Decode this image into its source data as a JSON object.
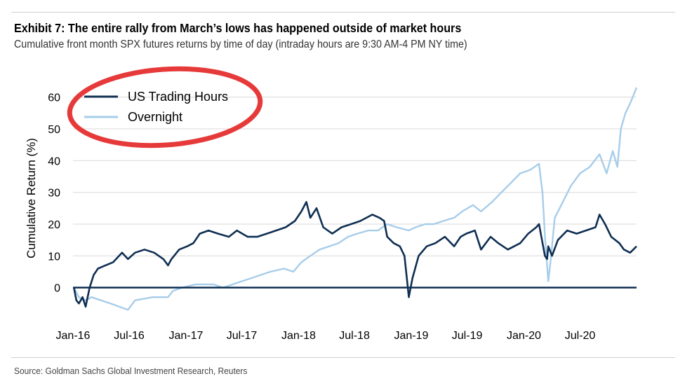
{
  "header": {
    "title": "Exhibit 7: The entire rally from March’s lows has happened outside of market hours",
    "subtitle": "Cumulative front month SPX futures returns by time of day (intraday hours are 9:30 AM-4 PM NY time)"
  },
  "footer": {
    "source": "Source: Goldman Sachs Global Investment Research, Reuters"
  },
  "colors": {
    "trading": "#0f2f52",
    "overnight": "#a7cdea",
    "zero_line": "#0f2f52",
    "grid": "#d9d9d9",
    "annotation": "#e63a3a"
  },
  "chart_data": {
    "type": "line",
    "title": "Exhibit 7: The entire rally from March’s lows has happened outside of market hours",
    "subtitle": "Cumulative front month SPX futures returns by time of day (intraday hours are 9:30 AM-4 PM NY time)",
    "xlabel": "",
    "ylabel": "Cumulative Return (%)",
    "ylim": [
      -10,
      65
    ],
    "yticks": [
      0,
      10,
      20,
      30,
      40,
      50,
      60
    ],
    "xlim": [
      "2016-01-01",
      "2020-12-31"
    ],
    "xticks": [
      {
        "date": "2016-01-01",
        "label": "Jan-16"
      },
      {
        "date": "2016-07-01",
        "label": "Jul-16"
      },
      {
        "date": "2017-01-01",
        "label": "Jan-17"
      },
      {
        "date": "2017-07-01",
        "label": "Jul-17"
      },
      {
        "date": "2018-01-01",
        "label": "Jan-18"
      },
      {
        "date": "2018-07-01",
        "label": "Jul-18"
      },
      {
        "date": "2019-01-01",
        "label": "Jan-19"
      },
      {
        "date": "2019-07-01",
        "label": "Jul-19"
      },
      {
        "date": "2020-01-01",
        "label": "Jan-20"
      },
      {
        "date": "2020-07-01",
        "label": "Jul-20"
      }
    ],
    "grid": "horizontal",
    "legend_position": "top-left",
    "series": [
      {
        "name": "US Trading Hours",
        "points": [
          [
            "2016-01-04",
            0
          ],
          [
            "2016-01-12",
            -4
          ],
          [
            "2016-01-20",
            -5
          ],
          [
            "2016-02-01",
            -3
          ],
          [
            "2016-02-11",
            -6
          ],
          [
            "2016-02-24",
            0
          ],
          [
            "2016-03-08",
            4
          ],
          [
            "2016-03-22",
            6
          ],
          [
            "2016-04-15",
            7
          ],
          [
            "2016-05-10",
            8
          ],
          [
            "2016-06-08",
            11
          ],
          [
            "2016-06-27",
            9
          ],
          [
            "2016-07-20",
            11
          ],
          [
            "2016-08-20",
            12
          ],
          [
            "2016-09-20",
            11
          ],
          [
            "2016-10-20",
            9
          ],
          [
            "2016-11-04",
            7
          ],
          [
            "2016-11-15",
            9
          ],
          [
            "2016-12-10",
            12
          ],
          [
            "2017-01-05",
            13
          ],
          [
            "2017-01-25",
            14
          ],
          [
            "2017-02-15",
            17
          ],
          [
            "2017-03-15",
            18
          ],
          [
            "2017-04-15",
            17
          ],
          [
            "2017-05-20",
            16
          ],
          [
            "2017-06-15",
            18
          ],
          [
            "2017-07-20",
            16
          ],
          [
            "2017-08-20",
            16
          ],
          [
            "2017-09-20",
            17
          ],
          [
            "2017-10-20",
            18
          ],
          [
            "2017-11-20",
            19
          ],
          [
            "2017-12-20",
            21
          ],
          [
            "2018-01-10",
            24
          ],
          [
            "2018-01-26",
            27
          ],
          [
            "2018-02-08",
            22
          ],
          [
            "2018-02-28",
            25
          ],
          [
            "2018-03-22",
            19
          ],
          [
            "2018-04-20",
            17
          ],
          [
            "2018-05-20",
            19
          ],
          [
            "2018-06-20",
            20
          ],
          [
            "2018-07-20",
            21
          ],
          [
            "2018-08-28",
            23
          ],
          [
            "2018-09-20",
            22
          ],
          [
            "2018-10-05",
            21
          ],
          [
            "2018-10-15",
            16
          ],
          [
            "2018-11-05",
            14
          ],
          [
            "2018-11-25",
            13
          ],
          [
            "2018-12-10",
            10
          ],
          [
            "2018-12-24",
            -3
          ],
          [
            "2019-01-05",
            3
          ],
          [
            "2019-01-25",
            10
          ],
          [
            "2019-02-20",
            13
          ],
          [
            "2019-03-20",
            14
          ],
          [
            "2019-04-20",
            16
          ],
          [
            "2019-05-20",
            13
          ],
          [
            "2019-06-10",
            16
          ],
          [
            "2019-06-28",
            17
          ],
          [
            "2019-07-26",
            18
          ],
          [
            "2019-08-15",
            12
          ],
          [
            "2019-09-15",
            16
          ],
          [
            "2019-10-10",
            14
          ],
          [
            "2019-11-10",
            12
          ],
          [
            "2019-12-20",
            14
          ],
          [
            "2020-01-15",
            17
          ],
          [
            "2020-02-10",
            19
          ],
          [
            "2020-02-19",
            20
          ],
          [
            "2020-03-09",
            10
          ],
          [
            "2020-03-16",
            9
          ],
          [
            "2020-03-20",
            13
          ],
          [
            "2020-04-01",
            10
          ],
          [
            "2020-04-20",
            15
          ],
          [
            "2020-05-20",
            18
          ],
          [
            "2020-06-20",
            17
          ],
          [
            "2020-07-20",
            18
          ],
          [
            "2020-08-20",
            19
          ],
          [
            "2020-09-02",
            23
          ],
          [
            "2020-09-20",
            20
          ],
          [
            "2020-10-10",
            16
          ],
          [
            "2020-11-05",
            14
          ],
          [
            "2020-11-20",
            12
          ],
          [
            "2020-12-10",
            11
          ],
          [
            "2020-12-31",
            13
          ]
        ]
      },
      {
        "name": "Overnight",
        "points": [
          [
            "2016-01-04",
            0
          ],
          [
            "2016-01-20",
            -3
          ],
          [
            "2016-02-11",
            -4
          ],
          [
            "2016-03-01",
            -3
          ],
          [
            "2016-04-01",
            -4
          ],
          [
            "2016-05-01",
            -5
          ],
          [
            "2016-06-27",
            -7
          ],
          [
            "2016-07-20",
            -4
          ],
          [
            "2016-09-15",
            -3
          ],
          [
            "2016-11-04",
            -3
          ],
          [
            "2016-11-20",
            -1
          ],
          [
            "2016-12-20",
            0
          ],
          [
            "2017-02-01",
            1
          ],
          [
            "2017-04-01",
            1
          ],
          [
            "2017-05-01",
            0
          ],
          [
            "2017-06-01",
            1
          ],
          [
            "2017-07-01",
            2
          ],
          [
            "2017-08-01",
            3
          ],
          [
            "2017-09-01",
            4
          ],
          [
            "2017-10-01",
            5
          ],
          [
            "2017-11-15",
            6
          ],
          [
            "2017-12-15",
            5
          ],
          [
            "2018-01-10",
            8
          ],
          [
            "2018-02-08",
            10
          ],
          [
            "2018-03-10",
            12
          ],
          [
            "2018-04-10",
            13
          ],
          [
            "2018-05-10",
            14
          ],
          [
            "2018-06-10",
            16
          ],
          [
            "2018-07-10",
            17
          ],
          [
            "2018-08-15",
            18
          ],
          [
            "2018-09-15",
            18
          ],
          [
            "2018-10-15",
            20
          ],
          [
            "2018-11-15",
            19
          ],
          [
            "2018-12-24",
            18
          ],
          [
            "2019-01-15",
            19
          ],
          [
            "2019-02-15",
            20
          ],
          [
            "2019-03-15",
            20
          ],
          [
            "2019-04-15",
            21
          ],
          [
            "2019-05-20",
            22
          ],
          [
            "2019-06-15",
            24
          ],
          [
            "2019-07-20",
            26
          ],
          [
            "2019-08-15",
            24
          ],
          [
            "2019-09-20",
            27
          ],
          [
            "2019-10-20",
            30
          ],
          [
            "2019-11-20",
            33
          ],
          [
            "2019-12-20",
            36
          ],
          [
            "2020-01-20",
            37
          ],
          [
            "2020-02-19",
            39
          ],
          [
            "2020-03-01",
            30
          ],
          [
            "2020-03-10",
            15
          ],
          [
            "2020-03-20",
            2
          ],
          [
            "2020-03-27",
            8
          ],
          [
            "2020-04-10",
            22
          ],
          [
            "2020-05-01",
            26
          ],
          [
            "2020-06-01",
            32
          ],
          [
            "2020-07-01",
            36
          ],
          [
            "2020-08-01",
            38
          ],
          [
            "2020-09-02",
            42
          ],
          [
            "2020-09-25",
            36
          ],
          [
            "2020-10-15",
            43
          ],
          [
            "2020-10-30",
            38
          ],
          [
            "2020-11-10",
            50
          ],
          [
            "2020-11-25",
            55
          ],
          [
            "2020-12-10",
            58
          ],
          [
            "2020-12-31",
            63
          ]
        ]
      }
    ]
  },
  "legend": {
    "items": [
      {
        "label": "US Trading Hours"
      },
      {
        "label": "Overnight"
      }
    ]
  }
}
